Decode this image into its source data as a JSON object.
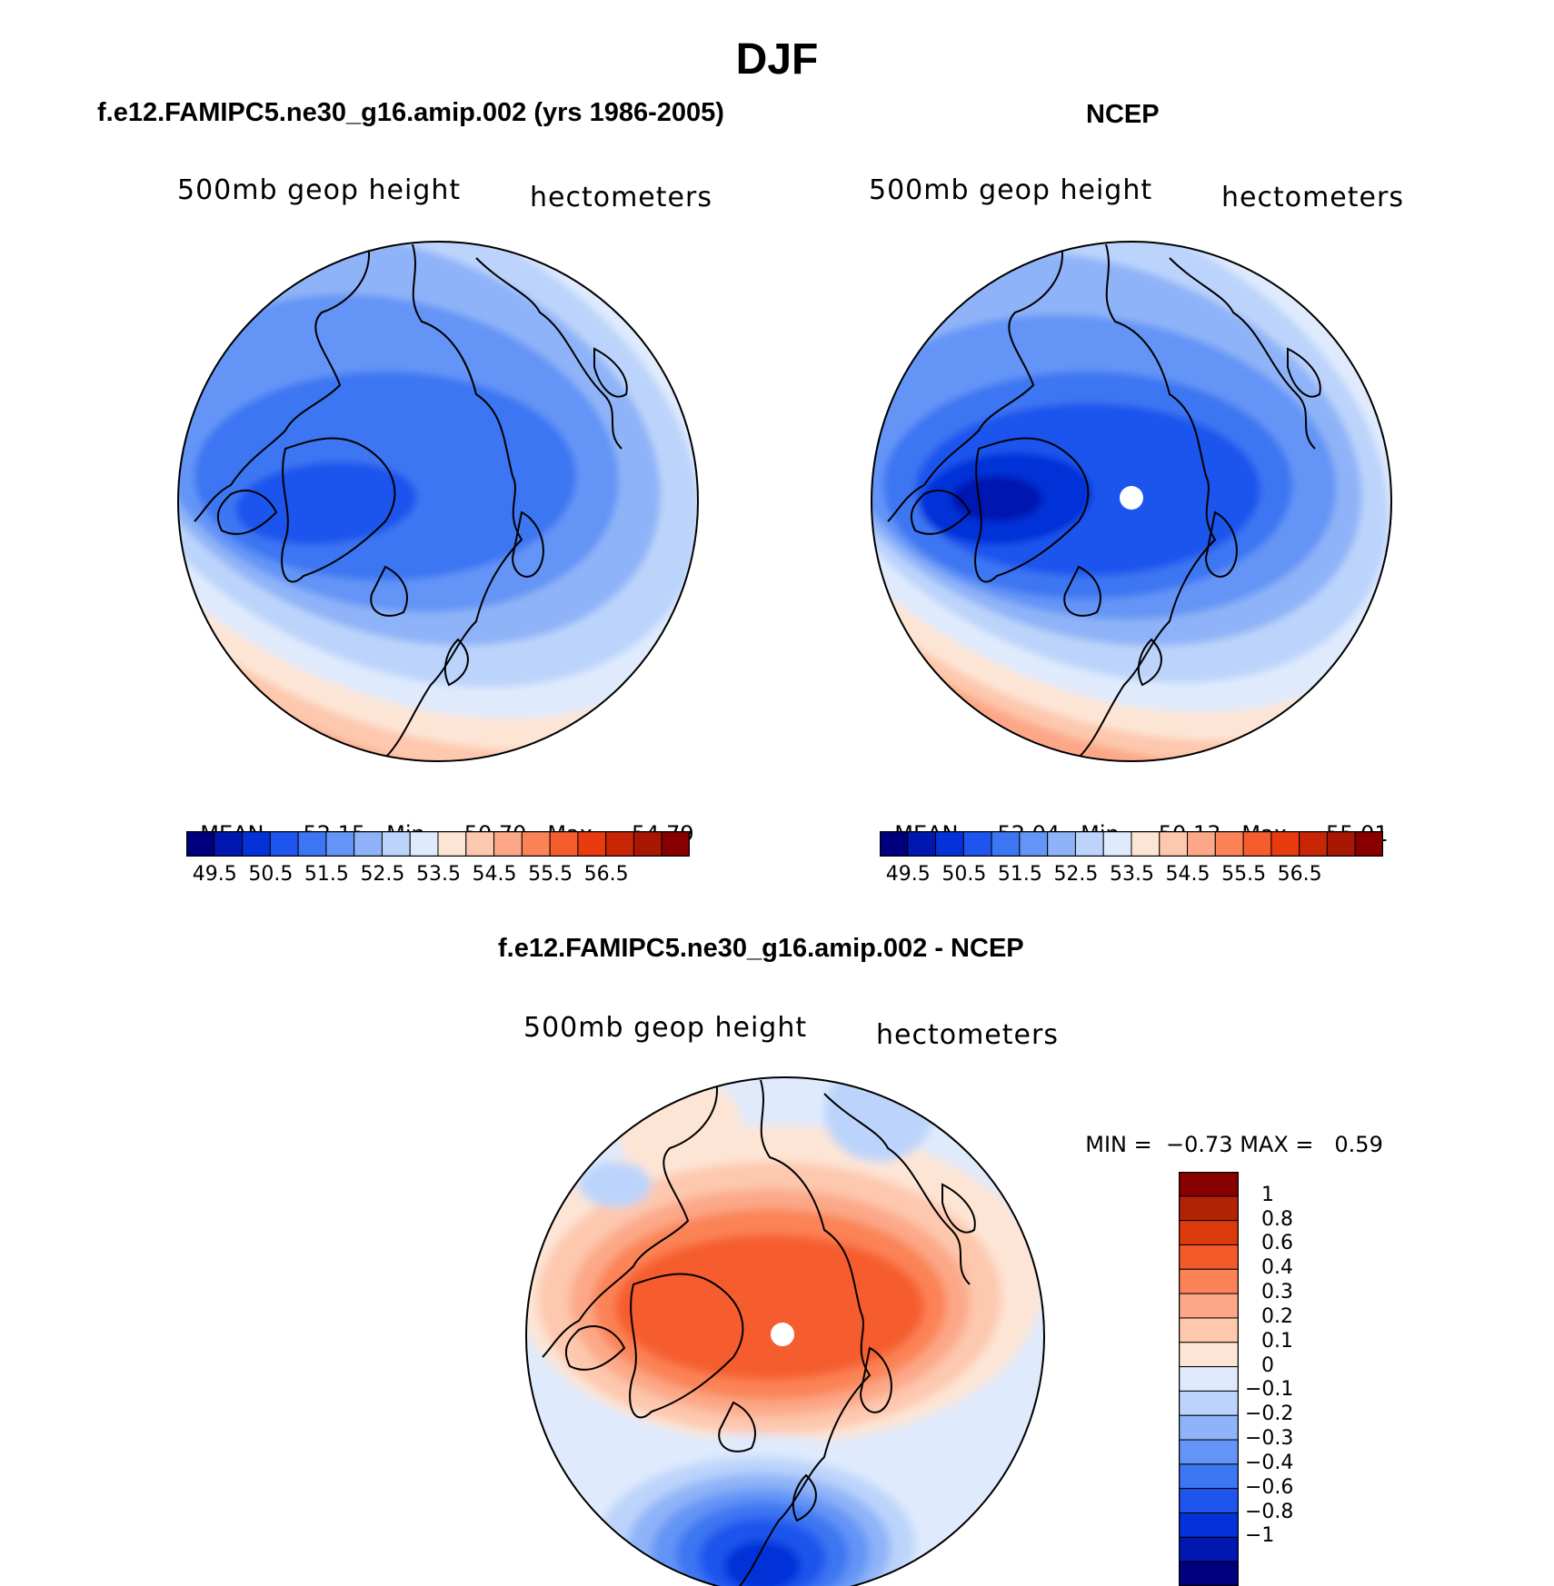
{
  "figure": {
    "title": "DJF"
  },
  "panels": [
    {
      "id": "model",
      "title": "f.e12.FAMIPC5.ne30_g16.amip.002 (yrs 1986-2005)",
      "left_label": "500mb  geop  height",
      "right_label": "hectometers",
      "stats": {
        "mean_label": "MEAN=",
        "mean": "52.15",
        "min_label": "Min=",
        "min": "50.70",
        "max_label": "Max=",
        "max": "54.79"
      }
    },
    {
      "id": "ncep",
      "title": "NCEP",
      "left_label": "500mb  geop  height",
      "right_label": "hectometers",
      "stats": {
        "mean_label": "MEAN=",
        "mean": "52.04",
        "min_label": "Min=",
        "min": "50.13",
        "max_label": "Max=",
        "max": "55.01"
      }
    },
    {
      "id": "diff",
      "title": "f.e12.FAMIPC5.ne30_g16.amip.002 - NCEP",
      "left_label": "500mb  geop  height",
      "right_label": "hectometers",
      "stats": {
        "min_label": "MIN =",
        "min": "−0.73",
        "max_label": "MAX =",
        "max": "0.59"
      }
    }
  ],
  "colorbar_abs": {
    "colors": [
      "#00007f",
      "#0018b0",
      "#0432d8",
      "#1e55ee",
      "#3c76f2",
      "#6494f6",
      "#8fb3f8",
      "#bcd4fb",
      "#dfeafd",
      "#fde5d5",
      "#fdc8ae",
      "#fca888",
      "#fb8357",
      "#f65d2e",
      "#e83b10",
      "#c82606",
      "#a81604",
      "#880000"
    ],
    "tick_labels": [
      "49.5",
      "50.5",
      "51.5",
      "52.5",
      "53.5",
      "54.5",
      "55.5",
      "56.5"
    ]
  },
  "colorbar_diff": {
    "colors_top_to_bottom": [
      "#880000",
      "#b22205",
      "#dc3a0c",
      "#f25a2a",
      "#fb8357",
      "#fca888",
      "#fdc8ae",
      "#fde5d5",
      "#dfeafd",
      "#bcd4fb",
      "#8fb3f8",
      "#6494f6",
      "#3c76f2",
      "#1e55ee",
      "#0432d8",
      "#0018b0",
      "#00007f"
    ],
    "tick_labels": [
      "1",
      "0.8",
      "0.6",
      "0.4",
      "0.3",
      "0.2",
      "0.1",
      "0",
      "−0.1",
      "−0.2",
      "−0.3",
      "−0.4",
      "−0.6",
      "−0.8",
      "−1"
    ]
  }
}
